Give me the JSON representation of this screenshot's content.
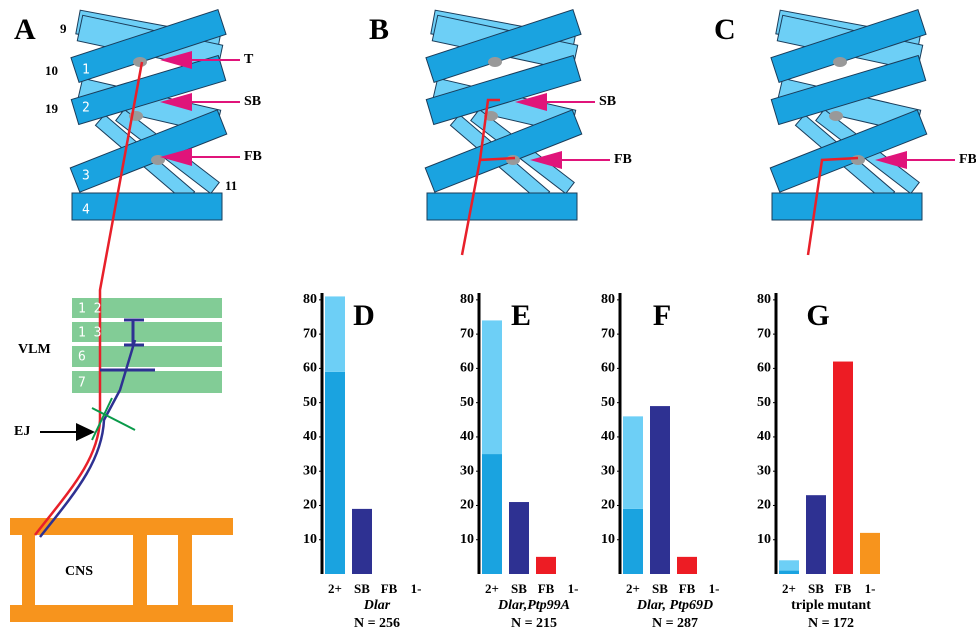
{
  "diagram": {
    "panel_labels": [
      "A",
      "B",
      "C"
    ],
    "muscle_numbers": [
      "9",
      "10",
      "1",
      "19",
      "2",
      "3",
      "11",
      "4"
    ],
    "arrows_a": [
      "T",
      "SB",
      "FB"
    ],
    "arrows_b": [
      "SB",
      "FB"
    ],
    "arrows_c": [
      "FB"
    ],
    "vlm_label": "VLM",
    "vlm_rows": [
      "1 2",
      "1 3",
      "6",
      "7"
    ],
    "ej": "EJ",
    "cns": "CNS"
  },
  "chart_data": [
    {
      "type": "bar",
      "title": "D",
      "subtitle": "Dlar",
      "subtitle_italic": true,
      "note": "N = 256",
      "categories": [
        "2+",
        "SB",
        "FB",
        "1-"
      ],
      "series": [
        {
          "colors": [
            "#1aa3e0",
            "#2e3192",
            "#ed1c24",
            "#f7941d"
          ],
          "values": [
            59,
            19,
            0,
            0
          ]
        },
        {
          "color": "#6dcff6",
          "values": [
            22,
            null,
            null,
            null
          ]
        }
      ],
      "ylim": [
        0,
        82
      ],
      "yticks": [
        10,
        20,
        30,
        40,
        50,
        60,
        70,
        80
      ]
    },
    {
      "type": "bar",
      "title": "E",
      "subtitle": "Dlar,Ptp99A",
      "subtitle_italic": true,
      "note": "N = 215",
      "categories": [
        "2+",
        "SB",
        "FB",
        "1-"
      ],
      "series": [
        {
          "colors": [
            "#1aa3e0",
            "#2e3192",
            "#ed1c24",
            "#f7941d"
          ],
          "values": [
            35,
            21,
            5,
            0
          ]
        },
        {
          "color": "#6dcff6",
          "values": [
            39,
            null,
            null,
            null
          ]
        }
      ],
      "ylim": [
        0,
        82
      ],
      "yticks": [
        10,
        20,
        30,
        40,
        50,
        60,
        70,
        80
      ]
    },
    {
      "type": "bar",
      "title": "F",
      "subtitle": "Dlar, Ptp69D",
      "subtitle_italic": true,
      "note": "N = 287",
      "categories": [
        "2+",
        "SB",
        "FB",
        "1-"
      ],
      "series": [
        {
          "colors": [
            "#1aa3e0",
            "#2e3192",
            "#ed1c24",
            "#f7941d"
          ],
          "values": [
            19,
            49,
            5,
            0
          ]
        },
        {
          "color": "#6dcff6",
          "values": [
            27,
            null,
            null,
            null
          ]
        }
      ],
      "ylim": [
        0,
        82
      ],
      "yticks": [
        10,
        20,
        30,
        40,
        50,
        60,
        70,
        80
      ]
    },
    {
      "type": "bar",
      "title": "G",
      "subtitle": "triple mutant",
      "subtitle_italic": false,
      "note": "N = 172",
      "categories": [
        "2+",
        "SB",
        "FB",
        "1-"
      ],
      "series": [
        {
          "colors": [
            "#1aa3e0",
            "#2e3192",
            "#ed1c24",
            "#f7941d"
          ],
          "values": [
            1,
            23,
            62,
            12
          ]
        },
        {
          "color": "#6dcff6",
          "values": [
            3,
            null,
            null,
            null
          ]
        }
      ],
      "ylim": [
        0,
        82
      ],
      "yticks": [
        10,
        20,
        30,
        40,
        50,
        60,
        70,
        80
      ]
    }
  ]
}
